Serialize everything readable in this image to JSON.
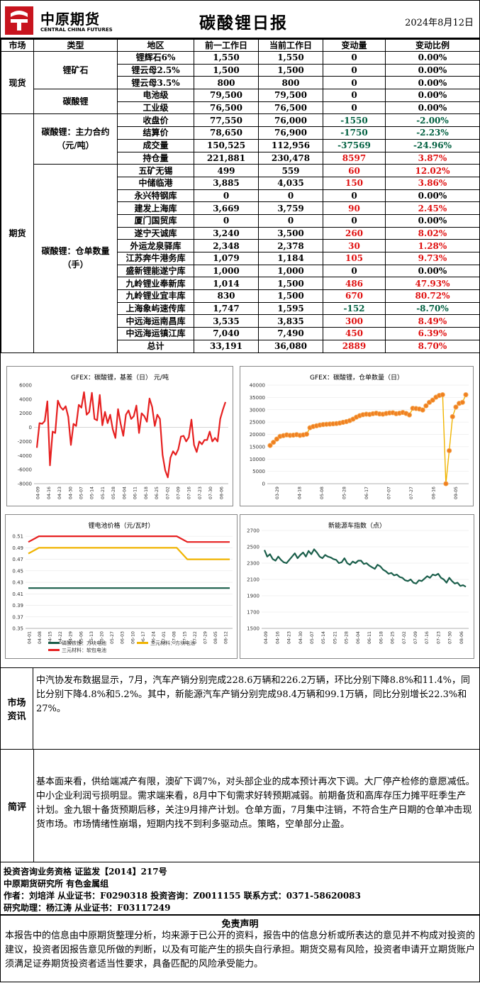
{
  "header": {
    "logo_cn": "中原期货",
    "logo_en": "CENTRAL CHINA FUTURES",
    "title": "碳酸锂日报",
    "date": "2024年8月12日"
  },
  "table": {
    "columns": [
      "市场",
      "类型",
      "地区",
      "前一工作日",
      "当前工作日",
      "变动量",
      "变动比例"
    ],
    "spot_label": "现货",
    "futures_label": "期货",
    "ore_label": "锂矿石",
    "carbonate_label": "碳酸锂",
    "contract_label": "碳酸锂：主力合约（元/吨）",
    "warehouse_label": "碳酸锂：仓单数量（手）",
    "rows": [
      {
        "name": "锂辉石6%",
        "prev": "1,550",
        "curr": "1,550",
        "chg": "0",
        "pct": "0.00%",
        "dir": "flat"
      },
      {
        "name": "锂云母2.5%",
        "prev": "1,500",
        "curr": "1,500",
        "chg": "0",
        "pct": "0.00%",
        "dir": "flat"
      },
      {
        "name": "锂云母3.5%",
        "prev": "800",
        "curr": "800",
        "chg": "0",
        "pct": "0.00%",
        "dir": "flat"
      },
      {
        "name": "电池级",
        "prev": "79,500",
        "curr": "79,500",
        "chg": "0",
        "pct": "0.00%",
        "dir": "flat"
      },
      {
        "name": "工业级",
        "prev": "76,500",
        "curr": "76,500",
        "chg": "0",
        "pct": "0.00%",
        "dir": "flat"
      },
      {
        "name": "收盘价",
        "prev": "77,550",
        "curr": "76,000",
        "chg": "-1550",
        "pct": "-2.00%",
        "dir": "down"
      },
      {
        "name": "结算价",
        "prev": "78,650",
        "curr": "76,900",
        "chg": "-1750",
        "pct": "-2.23%",
        "dir": "down"
      },
      {
        "name": "成交量",
        "prev": "150,525",
        "curr": "112,956",
        "chg": "-37569",
        "pct": "-24.96%",
        "dir": "down"
      },
      {
        "name": "持仓量",
        "prev": "221,881",
        "curr": "230,478",
        "chg": "8597",
        "pct": "3.87%",
        "dir": "up"
      },
      {
        "name": "五矿无锡",
        "prev": "499",
        "curr": "559",
        "chg": "60",
        "pct": "12.02%",
        "dir": "up"
      },
      {
        "name": "中储临港",
        "prev": "3,885",
        "curr": "4,035",
        "chg": "150",
        "pct": "3.86%",
        "dir": "up"
      },
      {
        "name": "永兴特钢库",
        "prev": "0",
        "curr": "0",
        "chg": "0",
        "pct": "0.00%",
        "dir": "flat"
      },
      {
        "name": "建发上海库",
        "prev": "3,669",
        "curr": "3,759",
        "chg": "90",
        "pct": "2.45%",
        "dir": "up"
      },
      {
        "name": "厦门国贸库",
        "prev": "0",
        "curr": "0",
        "chg": "0",
        "pct": "0.00%",
        "dir": "flat"
      },
      {
        "name": "遂宁天诚库",
        "prev": "3,240",
        "curr": "3,500",
        "chg": "260",
        "pct": "8.02%",
        "dir": "up"
      },
      {
        "name": "外运龙泉驿库",
        "prev": "2,348",
        "curr": "2,378",
        "chg": "30",
        "pct": "1.28%",
        "dir": "up"
      },
      {
        "name": "江苏奔牛港务库",
        "prev": "1,079",
        "curr": "1,184",
        "chg": "105",
        "pct": "9.73%",
        "dir": "up"
      },
      {
        "name": "盛新锂能遂宁库",
        "prev": "1,000",
        "curr": "1,000",
        "chg": "0",
        "pct": "0.00%",
        "dir": "flat"
      },
      {
        "name": "九岭锂业奉新库",
        "prev": "1,014",
        "curr": "1,500",
        "chg": "486",
        "pct": "47.93%",
        "dir": "up"
      },
      {
        "name": "九岭锂业宜丰库",
        "prev": "830",
        "curr": "1,500",
        "chg": "670",
        "pct": "80.72%",
        "dir": "up"
      },
      {
        "name": "上海象屿速传库",
        "prev": "1,747",
        "curr": "1,595",
        "chg": "-152",
        "pct": "-8.70%",
        "dir": "down"
      },
      {
        "name": "中远海运南昌库",
        "prev": "3,535",
        "curr": "3,835",
        "chg": "300",
        "pct": "8.49%",
        "dir": "up"
      },
      {
        "name": "中远海运镇江库",
        "prev": "7,040",
        "curr": "7,490",
        "chg": "450",
        "pct": "6.39%",
        "dir": "up"
      },
      {
        "name": "总计",
        "prev": "33,191",
        "curr": "36,080",
        "chg": "2889",
        "pct": "8.70%",
        "dir": "up"
      }
    ]
  },
  "colors": {
    "up": "#e01010",
    "down": "#006040",
    "red_line": "#e62020",
    "orange_dot": "#f08020",
    "gold": "#f0b400",
    "teal": "#1a5e4a"
  },
  "chart_data": [
    {
      "type": "line",
      "title": "GFEX：碳酸锂，基差（日） 元/吨",
      "ylim": [
        -8000,
        6000
      ],
      "yticks": [
        -8000,
        -6000,
        -4000,
        -2000,
        0,
        2000,
        4000,
        6000
      ],
      "xticks": [
        "04-09",
        "04-16",
        "04-23",
        "04-30",
        "05-07",
        "05-14",
        "05-21",
        "05-28",
        "06-04",
        "06-11",
        "06-18",
        "06-25",
        "07-02",
        "07-09",
        "07-16",
        "07-23",
        "07-30",
        "08-06"
      ],
      "series": [
        {
          "color": "#e62020",
          "values": [
            -2900,
            600,
            500,
            900,
            3700,
            -5400,
            -600,
            -800,
            3800,
            2900,
            2500,
            3000,
            1500,
            -2500,
            500,
            200,
            3200,
            2800,
            5000,
            1800,
            2200,
            4900,
            1200,
            1000,
            4600,
            300,
            2200,
            600,
            1800,
            -300,
            -1500,
            2600,
            500,
            -1200,
            1800,
            2400,
            1200,
            1600,
            3100,
            -800,
            2000,
            1600,
            800,
            4100,
            2900,
            200,
            1800,
            1200,
            -3900,
            -6100,
            -7100,
            -4300,
            -3400,
            -3900,
            -3100,
            -1300,
            -1200,
            -2000,
            -1400,
            1100,
            -2500,
            -3500,
            -2000,
            -2400,
            -1800,
            -1800,
            -600,
            -2000,
            -1500,
            -2000,
            1200,
            2500,
            3600
          ]
        }
      ]
    },
    {
      "type": "scatter",
      "title": "GFEX：碳酸锂，仓单数量（日）",
      "ylim": [
        0,
        40000
      ],
      "yticks": [
        0,
        5000,
        10000,
        15000,
        20000,
        25000,
        30000,
        35000,
        40000
      ],
      "xticks": [
        "03-29",
        "04-18",
        "05-08",
        "05-28",
        "06-17",
        "07-07",
        "07-27",
        "08-16",
        "09-05"
      ],
      "series": [
        {
          "color": "#f08020",
          "values": [
            15500,
            16800,
            18100,
            19200,
            19500,
            19800,
            19600,
            19700,
            19900,
            19600,
            19800,
            20100,
            22700,
            23200,
            23500,
            23800,
            24000,
            24100,
            24200,
            24300,
            24400,
            24600,
            24900,
            25200,
            25600,
            26200,
            27000,
            27600,
            28000,
            28200,
            28100,
            28400,
            28600,
            28300,
            28200,
            28500,
            28700,
            28800,
            28400,
            28600,
            28900,
            28500,
            27900,
            30600,
            30500,
            30300,
            29900,
            31600,
            33000,
            33900,
            35100,
            35800,
            36100,
            0,
            13400,
            27200,
            31100,
            32600,
            33000,
            36100
          ]
        }
      ]
    },
    {
      "type": "line",
      "title": "锂电池价格（元/瓦时）",
      "ylim": [
        0.35,
        0.52
      ],
      "yticks": [
        0.35,
        0.37,
        0.39,
        0.41,
        0.43,
        0.45,
        0.47,
        0.49,
        0.51
      ],
      "xticks": [
        "04-01",
        "04-08",
        "04-15",
        "04-22",
        "04-29",
        "05-06",
        "05-13",
        "05-20",
        "05-27",
        "06-03",
        "06-10",
        "06-17",
        "06-24",
        "07-01",
        "07-08",
        "07-15",
        "07-22",
        "07-29",
        "08-05",
        "08-12"
      ],
      "series": [
        {
          "name": "磷酸铁锂：方块电池",
          "color": "#1a5e4a",
          "values": [
            0.42,
            0.42,
            0.42,
            0.42,
            0.42,
            0.42,
            0.42,
            0.42,
            0.42,
            0.42,
            0.42,
            0.42,
            0.42,
            0.42,
            0.42,
            0.42,
            0.42,
            0.42,
            0.42,
            0.42
          ]
        },
        {
          "name": "三元材料：方块电池",
          "color": "#f0b400",
          "values": [
            0.48,
            0.49,
            0.49,
            0.49,
            0.49,
            0.49,
            0.49,
            0.49,
            0.49,
            0.49,
            0.49,
            0.49,
            0.49,
            0.49,
            0.49,
            0.47,
            0.47,
            0.47,
            0.47,
            0.47
          ]
        },
        {
          "name": "三元材料：软包电池",
          "color": "#e62020",
          "values": [
            0.5,
            0.51,
            0.51,
            0.51,
            0.51,
            0.51,
            0.51,
            0.51,
            0.51,
            0.51,
            0.51,
            0.51,
            0.51,
            0.51,
            0.51,
            0.5,
            0.5,
            0.5,
            0.5,
            0.5
          ]
        }
      ]
    },
    {
      "type": "line",
      "title": "新能源车指数（点）",
      "ylim": [
        1500,
        2700
      ],
      "yticks": [
        1500,
        1700,
        1900,
        2100,
        2300,
        2500,
        2700
      ],
      "xticks": [
        "04-09",
        "04-16",
        "04-23",
        "04-30",
        "05-07",
        "05-14",
        "05-21",
        "05-28",
        "06-04",
        "06-11",
        "06-18",
        "06-25",
        "07-02",
        "07-09",
        "07-16",
        "07-23",
        "07-30",
        "08-06"
      ],
      "series": [
        {
          "color": "#1a5e4a",
          "values": [
            2460,
            2380,
            2410,
            2350,
            2330,
            2380,
            2340,
            2310,
            2300,
            2340,
            2380,
            2420,
            2360,
            2400,
            2430,
            2380,
            2450,
            2410,
            2470,
            2430,
            2380,
            2360,
            2400,
            2380,
            2370,
            2350,
            2340,
            2300,
            2310,
            2360,
            2300,
            2280,
            2320,
            2300,
            2330,
            2330,
            2290,
            2300,
            2270,
            2250,
            2230,
            2280,
            2260,
            2220,
            2200,
            2170,
            2180,
            2150,
            2160,
            2130,
            2120,
            2090,
            2080,
            2100,
            2060,
            2050,
            2090,
            2080,
            2110,
            2140,
            2120,
            2160,
            2150,
            2170,
            2120,
            2100,
            2060,
            2120,
            2080,
            2050,
            2060,
            2020,
            2030,
            2010
          ]
        }
      ]
    }
  ],
  "market_info": {
    "label": "市场资讯",
    "text": "中汽协发布数据显示，7月，汽车产销分别完成228.6万辆和226.2万辆，环比分别下降8.8%和11.4%，同比分别下降4.8%和5.2%。其中，新能源汽车产销分别完成98.4万辆和99.1万辆，同比分别增长22.3%和27%。"
  },
  "commentary": {
    "label": "简评",
    "text": "基本面来看，供给端减产有限，澳矿下调7%，对头部企业的成本预计再次下调。大厂停产检修的意愿减低。中小企业利润亏损明显。需求端来看，8月中下旬需求好转预期减弱。前期备货和高库存压力摊平旺季生产计划。金九银十备货预期后移，关注9月排产计划。仓单方面，7月集中注销，不符合生产日期的仓单冲击现货市场。市场情绪性崩塌，短期内找不到利多驱动点。策略，空单部分止盈。"
  },
  "footer": {
    "line1": "投资咨询业务资格   证监发【2014】217号",
    "line2": "中原期货研究所   有色金属组",
    "line3": "作者：刘培洋      从业证书：F0290318      投资咨询：Z0011155      联系方式：0371-58620083",
    "line4": "研究助理：杨江涛      从业证书：F03117249",
    "disclaimer_title": "免责声明",
    "disclaimer": "本报告中的信息由中原期货整理分析，均来源于已公开的资料，报告中的信息分析或所表达的意见并不构成对投资的建议，投资者因报告意见所做的判断，以及有可能产生的损失自行承担。期货交易有风险，投资者申请开立期货账户须满足证券期货投资者适当性要求，具备匹配的风险承受能力。"
  }
}
